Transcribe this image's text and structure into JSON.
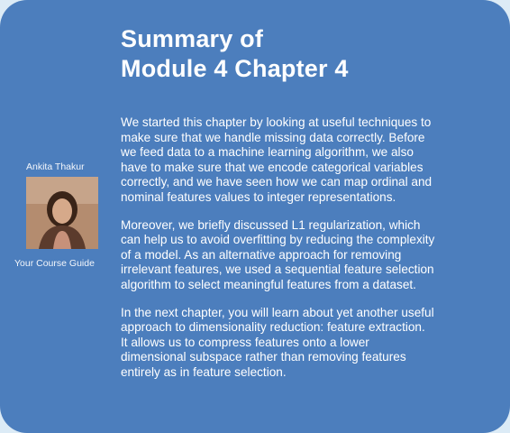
{
  "title": {
    "line1": "Summary of",
    "line2": "Module 4 Chapter 4"
  },
  "guide": {
    "name": "Ankita Thakur",
    "role": "Your Course Guide"
  },
  "paragraphs": [
    {
      "lines": [
        "We started this chapter by looking at useful techniques to",
        "make sure that we handle missing data correctly. Before",
        "we feed data to a machine learning algorithm, we also",
        "have to make sure that we encode categorical variables",
        "correctly, and we have seen how we can map ordinal and",
        "nominal features values to integer representations."
      ]
    },
    {
      "lines": [
        "Moreover, we briefly discussed L1 regularization, which",
        "can help us to avoid overfitting by reducing the complexity",
        "of a model. As an alternative approach for removing",
        "irrelevant features, we used a sequential feature selection",
        "algorithm to select meaningful features from a dataset."
      ]
    },
    {
      "lines": [
        "In the next chapter, you will learn about yet another useful",
        "approach to dimensionality reduction: feature extraction.",
        "It allows us to compress features onto a lower",
        "dimensional subspace rather than removing features",
        "entirely as in feature selection."
      ]
    }
  ],
  "colors": {
    "card_background": "#4c7ebd",
    "page_background": "#dcebf6",
    "text": "#ffffff"
  }
}
